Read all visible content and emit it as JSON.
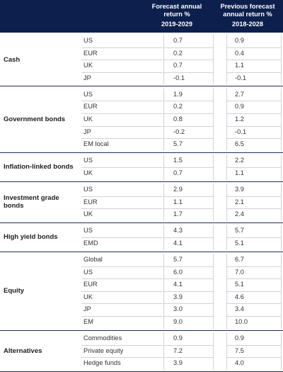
{
  "header": {
    "forecast_line1": "Forecast annual",
    "forecast_line2": "return %",
    "forecast_years": "2019-2029",
    "previous_line1": "Previous forecast",
    "previous_line2": "annual return %",
    "previous_years": "2018-2028"
  },
  "groups": [
    {
      "label_lines": [
        "Cash"
      ],
      "rows": [
        {
          "sub": "US",
          "forecast": "0.7",
          "previous": "0.9"
        },
        {
          "sub": "EUR",
          "forecast": "0.2",
          "previous": "0.4"
        },
        {
          "sub": "UK",
          "forecast": "0.7",
          "previous": "1.1"
        },
        {
          "sub": "JP",
          "forecast": "-0.1",
          "previous": "-0.1"
        }
      ]
    },
    {
      "label_lines": [
        "Government bonds"
      ],
      "rows": [
        {
          "sub": "US",
          "forecast": "1.9",
          "previous": "2.7"
        },
        {
          "sub": "EUR",
          "forecast": "0.2",
          "previous": "0.9"
        },
        {
          "sub": "UK",
          "forecast": "0.8",
          "previous": "1.2"
        },
        {
          "sub": "JP",
          "forecast": "-0.2",
          "previous": "-0.1"
        },
        {
          "sub": "EM local",
          "forecast": "5.7",
          "previous": "6.5"
        }
      ]
    },
    {
      "label_lines": [
        "Inflation-linked bonds"
      ],
      "rows": [
        {
          "sub": "US",
          "forecast": "1.5",
          "previous": "2.2"
        },
        {
          "sub": "UK",
          "forecast": "0.7",
          "previous": "1.1"
        }
      ]
    },
    {
      "label_lines": [
        "Investment grade",
        "bonds"
      ],
      "rows": [
        {
          "sub": "US",
          "forecast": "2.9",
          "previous": "3.9"
        },
        {
          "sub": "EUR",
          "forecast": "1.1",
          "previous": "2.1"
        },
        {
          "sub": "UK",
          "forecast": "1.7",
          "previous": "2.4"
        }
      ]
    },
    {
      "label_lines": [
        "High yield bonds"
      ],
      "rows": [
        {
          "sub": "US",
          "forecast": "4.3",
          "previous": "5.7"
        },
        {
          "sub": "EMD",
          "forecast": "4.1",
          "previous": "5.1"
        }
      ]
    },
    {
      "label_lines": [
        "Equity"
      ],
      "rows": [
        {
          "sub": "Global",
          "forecast": "5.7",
          "previous": "6.7"
        },
        {
          "sub": "US",
          "forecast": "6.0",
          "previous": "7.0"
        },
        {
          "sub": "EUR",
          "forecast": "4.1",
          "previous": "5.1"
        },
        {
          "sub": "UK",
          "forecast": "3.9",
          "previous": "4.6"
        },
        {
          "sub": "JP",
          "forecast": "3.0",
          "previous": "3.4"
        },
        {
          "sub": "EM",
          "forecast": "9.0",
          "previous": "10.0"
        }
      ]
    },
    {
      "label_lines": [
        "Alternatives"
      ],
      "rows": [
        {
          "sub": "Commodities",
          "forecast": "0.9",
          "previous": "0.9"
        },
        {
          "sub": "Private equity",
          "forecast": "7.2",
          "previous": "7.5"
        },
        {
          "sub": "Hedge funds",
          "forecast": "3.9",
          "previous": "4.0"
        }
      ]
    }
  ]
}
